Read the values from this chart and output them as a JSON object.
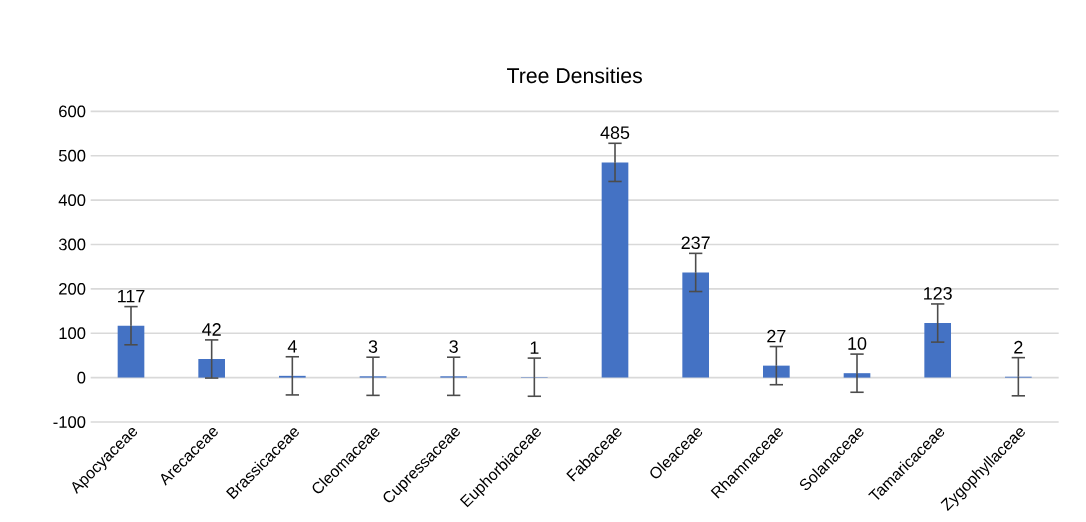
{
  "chart_data": {
    "type": "bar",
    "title": "Tree Densities",
    "categories": [
      "Apocyaceae",
      "Arecaceae",
      "Brassicaceae",
      "Cleomaceae",
      "Cupressaceae",
      "Euphorbiaceae",
      "Fabaceae",
      "Oleaceae",
      "Rhamnaceae",
      "Solanaceae",
      "Tamaricaceae",
      "Zygophyllaceae"
    ],
    "values": [
      117,
      42,
      4,
      3,
      3,
      1,
      485,
      237,
      27,
      10,
      123,
      2
    ],
    "errors": [
      43,
      43,
      43,
      43,
      43,
      43,
      43,
      43,
      43,
      43,
      43,
      43
    ],
    "color": "#4472c4",
    "ylim": [
      -100,
      600
    ],
    "yticks": [
      -100,
      0,
      100,
      200,
      300,
      400,
      500,
      600
    ],
    "grid": "y",
    "data_labels": true
  }
}
